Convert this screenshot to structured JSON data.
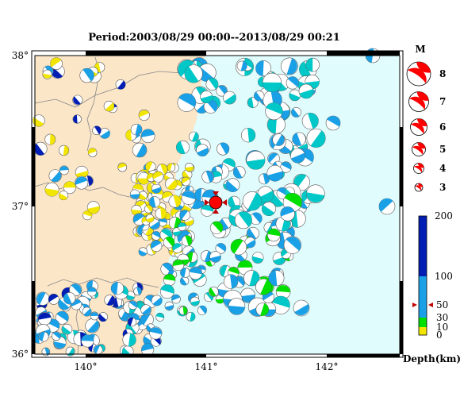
{
  "title": "Period:2003/08/29 00:00--2013/08/29 00:21",
  "lon_labels": [
    "140°",
    "141°",
    "142°"
  ],
  "lat_labels": [
    "38°",
    "37°",
    "36°"
  ],
  "magnitude": {
    "heading": "M",
    "levels": [
      "8",
      "7",
      "6",
      "5",
      "4",
      "3"
    ]
  },
  "depth_scale": {
    "label": "Depth(km)",
    "ticks": [
      "200",
      "100",
      "50",
      "30",
      "10",
      "0"
    ],
    "colors": {
      "shallow": "#f2e600",
      "mid": "#00e000",
      "deep": "#1aa0e6",
      "deepest": "#001eb4",
      "very_shallow": "#00c8c8"
    }
  },
  "colors": {
    "land": "#fbe6c8",
    "sea": "#e0fcfc",
    "mechanism_red": "#ff0000"
  }
}
